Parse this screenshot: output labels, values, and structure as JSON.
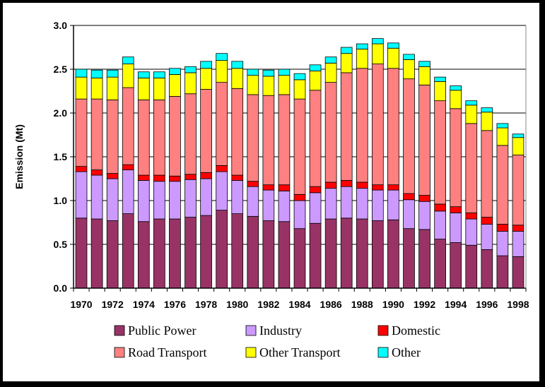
{
  "chart_data": {
    "type": "bar",
    "stacked": true,
    "ylabel": "Emission (Mt)",
    "xlabel": "",
    "title": "",
    "ylim": [
      0,
      3.0
    ],
    "yticks": [
      "0.0",
      "0.5",
      "1.0",
      "1.5",
      "2.0",
      "2.5",
      "3.0"
    ],
    "grid": true,
    "legend_position": "bottom",
    "categories": [
      "1970",
      "1971",
      "1972",
      "1973",
      "1974",
      "1975",
      "1976",
      "1977",
      "1978",
      "1979",
      "1980",
      "1981",
      "1982",
      "1983",
      "1984",
      "1985",
      "1986",
      "1987",
      "1988",
      "1989",
      "1990",
      "1991",
      "1992",
      "1993",
      "1994",
      "1995",
      "1996",
      "1997",
      "1998"
    ],
    "xtick_labels": [
      "1970",
      "",
      "1972",
      "",
      "1974",
      "",
      "1976",
      "",
      "1978",
      "",
      "1980",
      "",
      "1982",
      "",
      "1984",
      "",
      "1986",
      "",
      "1988",
      "",
      "1990",
      "",
      "1992",
      "",
      "1994",
      "",
      "1996",
      "",
      "1998"
    ],
    "series": [
      {
        "name": "Public Power",
        "color": "#993366",
        "values": [
          0.8,
          0.79,
          0.77,
          0.85,
          0.76,
          0.79,
          0.79,
          0.81,
          0.83,
          0.89,
          0.85,
          0.82,
          0.77,
          0.76,
          0.68,
          0.74,
          0.79,
          0.8,
          0.79,
          0.77,
          0.78,
          0.68,
          0.67,
          0.56,
          0.52,
          0.49,
          0.44,
          0.37,
          0.36
        ]
      },
      {
        "name": "Industry",
        "color": "#cc99ff",
        "values": [
          0.53,
          0.5,
          0.48,
          0.5,
          0.47,
          0.43,
          0.43,
          0.43,
          0.42,
          0.44,
          0.38,
          0.34,
          0.35,
          0.35,
          0.32,
          0.35,
          0.35,
          0.36,
          0.35,
          0.35,
          0.34,
          0.33,
          0.32,
          0.32,
          0.34,
          0.3,
          0.29,
          0.28,
          0.29
        ]
      },
      {
        "name": "Domestic",
        "color": "#ff0000",
        "values": [
          0.06,
          0.06,
          0.06,
          0.06,
          0.06,
          0.07,
          0.06,
          0.06,
          0.07,
          0.07,
          0.06,
          0.06,
          0.06,
          0.07,
          0.07,
          0.07,
          0.07,
          0.07,
          0.07,
          0.06,
          0.06,
          0.07,
          0.07,
          0.08,
          0.07,
          0.07,
          0.08,
          0.08,
          0.07
        ]
      },
      {
        "name": "Road Transport",
        "color": "#ff8080",
        "values": [
          0.77,
          0.81,
          0.84,
          0.88,
          0.86,
          0.86,
          0.91,
          0.92,
          0.95,
          0.95,
          0.99,
          0.99,
          1.02,
          1.03,
          1.09,
          1.1,
          1.14,
          1.23,
          1.3,
          1.38,
          1.33,
          1.31,
          1.26,
          1.18,
          1.12,
          1.02,
          0.99,
          0.9,
          0.8
        ]
      },
      {
        "name": "Other Transport",
        "color": "#ffff00",
        "values": [
          0.25,
          0.24,
          0.26,
          0.27,
          0.25,
          0.25,
          0.25,
          0.24,
          0.24,
          0.25,
          0.23,
          0.22,
          0.22,
          0.22,
          0.22,
          0.22,
          0.22,
          0.22,
          0.22,
          0.23,
          0.23,
          0.22,
          0.21,
          0.22,
          0.21,
          0.21,
          0.21,
          0.2,
          0.2
        ]
      },
      {
        "name": "Other",
        "color": "#00ffff",
        "values": [
          0.09,
          0.09,
          0.08,
          0.08,
          0.07,
          0.07,
          0.07,
          0.07,
          0.08,
          0.08,
          0.08,
          0.07,
          0.07,
          0.07,
          0.07,
          0.07,
          0.07,
          0.07,
          0.06,
          0.06,
          0.06,
          0.06,
          0.06,
          0.05,
          0.05,
          0.05,
          0.05,
          0.05,
          0.04
        ]
      }
    ]
  }
}
